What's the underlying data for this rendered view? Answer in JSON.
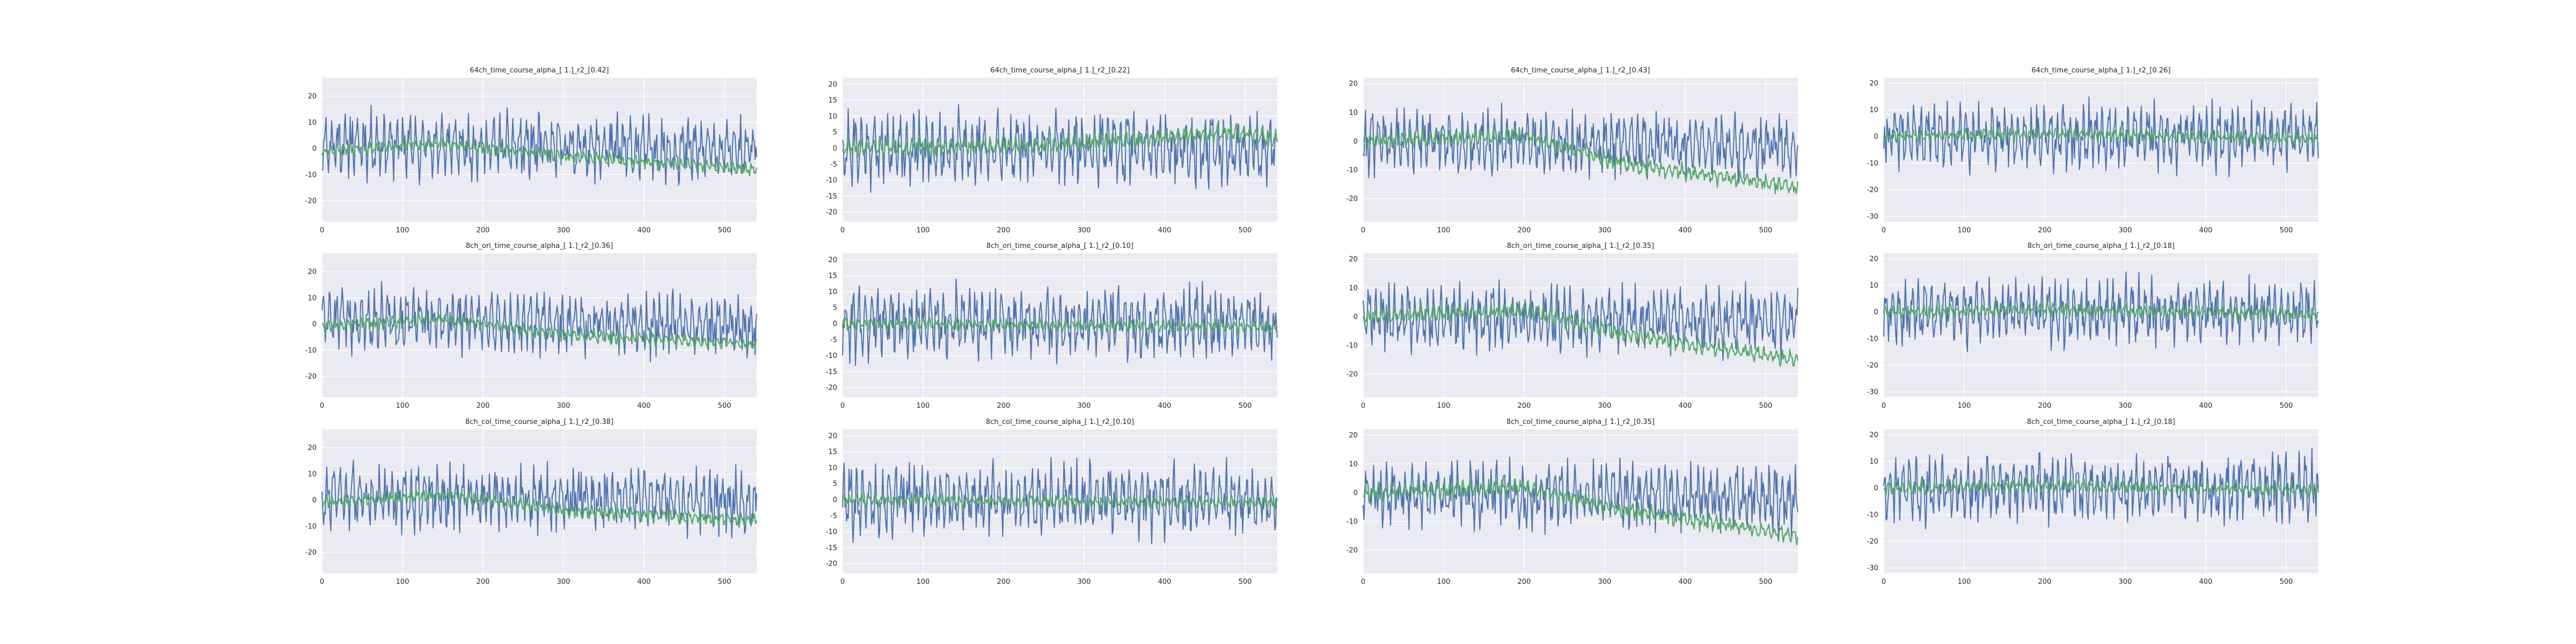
{
  "colors": {
    "background": "#ffffff",
    "axes_face": "#eaeaf2",
    "grid": "#ffffff",
    "series_blue": "#4c72b0",
    "series_green": "#55a868",
    "text": "#262626"
  },
  "figure_layout": {
    "rows": 3,
    "cols": 4,
    "style": "seaborn darkgrid"
  },
  "chart_data": [
    {
      "type": "line",
      "title": "64ch_time_course_alpha_[ 1.]_r2_[0.42]",
      "xlim": [
        0,
        540
      ],
      "ylim": [
        -28,
        27
      ],
      "xticks": [
        0,
        100,
        200,
        300,
        400,
        500
      ],
      "yticks": [
        20,
        10,
        0,
        -10,
        -20
      ],
      "grid": true,
      "series": [
        {
          "color": "#4c72b0",
          "amplitude": 12,
          "trend": [
            [
              0,
              2
            ],
            [
              540,
              -1
            ]
          ],
          "seed": 11
        },
        {
          "color": "#55a868",
          "amplitude": 2.5,
          "trend": [
            [
              0,
              -1
            ],
            [
              150,
              2
            ],
            [
              300,
              -3
            ],
            [
              540,
              -8
            ]
          ],
          "seed": 12
        }
      ]
    },
    {
      "type": "line",
      "title": "64ch_time_course_alpha_[ 1.]_r2_[0.22]",
      "xlim": [
        0,
        540
      ],
      "ylim": [
        -23,
        22
      ],
      "xticks": [
        0,
        100,
        200,
        300,
        400,
        500
      ],
      "yticks": [
        20,
        15,
        10,
        5,
        0,
        -5,
        -10,
        -15,
        -20
      ],
      "grid": true,
      "series": [
        {
          "color": "#4c72b0",
          "amplitude": 11,
          "trend": [
            [
              0,
              0
            ],
            [
              540,
              0
            ]
          ],
          "seed": 21
        },
        {
          "color": "#55a868",
          "amplitude": 3,
          "trend": [
            [
              0,
              0
            ],
            [
              250,
              1
            ],
            [
              500,
              5
            ],
            [
              540,
              2
            ]
          ],
          "seed": 22
        }
      ]
    },
    {
      "type": "line",
      "title": "64ch_time_course_alpha_[ 1.]_r2_[0.43]",
      "xlim": [
        0,
        540
      ],
      "ylim": [
        -28,
        22
      ],
      "xticks": [
        0,
        100,
        200,
        300,
        400,
        500
      ],
      "yticks": [
        20,
        10,
        0,
        -10,
        -20
      ],
      "grid": true,
      "series": [
        {
          "color": "#4c72b0",
          "amplitude": 11,
          "trend": [
            [
              0,
              0
            ],
            [
              540,
              -2
            ]
          ],
          "seed": 31
        },
        {
          "color": "#55a868",
          "amplitude": 3,
          "trend": [
            [
              0,
              0
            ],
            [
              200,
              2
            ],
            [
              320,
              -8
            ],
            [
              540,
              -16
            ]
          ],
          "seed": 32
        }
      ]
    },
    {
      "type": "line",
      "title": "64ch_time_course_alpha_[ 1.]_r2_[0.26]",
      "xlim": [
        0,
        540
      ],
      "ylim": [
        -32,
        22
      ],
      "xticks": [
        0,
        100,
        200,
        300,
        400,
        500
      ],
      "yticks": [
        20,
        10,
        0,
        -10,
        -20,
        -30
      ],
      "grid": true,
      "series": [
        {
          "color": "#4c72b0",
          "amplitude": 12,
          "trend": [
            [
              0,
              0
            ],
            [
              540,
              0
            ]
          ],
          "seed": 41
        },
        {
          "color": "#55a868",
          "amplitude": 2.5,
          "trend": [
            [
              0,
              0
            ],
            [
              200,
              1
            ],
            [
              540,
              -1
            ]
          ],
          "seed": 42
        }
      ]
    },
    {
      "type": "line",
      "title": "8ch_ori_time_course_alpha_[ 1.]_r2_[0.36]",
      "xlim": [
        0,
        540
      ],
      "ylim": [
        -28,
        27
      ],
      "xticks": [
        0,
        100,
        200,
        300,
        400,
        500
      ],
      "yticks": [
        20,
        10,
        0,
        -10,
        -20
      ],
      "grid": true,
      "series": [
        {
          "color": "#4c72b0",
          "amplitude": 12,
          "trend": [
            [
              0,
              2
            ],
            [
              540,
              -1
            ]
          ],
          "seed": 51
        },
        {
          "color": "#55a868",
          "amplitude": 2.5,
          "trend": [
            [
              0,
              -1
            ],
            [
              150,
              2
            ],
            [
              300,
              -4
            ],
            [
              540,
              -8
            ]
          ],
          "seed": 52
        }
      ]
    },
    {
      "type": "line",
      "title": "8ch_ori_time_course_alpha_[ 1.]_r2_[0.10]",
      "xlim": [
        0,
        540
      ],
      "ylim": [
        -23,
        22
      ],
      "xticks": [
        0,
        100,
        200,
        300,
        400,
        500
      ],
      "yticks": [
        20,
        15,
        10,
        5,
        0,
        -5,
        -10,
        -15,
        -20
      ],
      "grid": true,
      "series": [
        {
          "color": "#4c72b0",
          "amplitude": 11,
          "trend": [
            [
              0,
              0
            ],
            [
              540,
              0
            ]
          ],
          "seed": 61
        },
        {
          "color": "#55a868",
          "amplitude": 2,
          "trend": [
            [
              0,
              0
            ],
            [
              540,
              -1
            ]
          ],
          "seed": 62
        }
      ]
    },
    {
      "type": "line",
      "title": "8ch_ori_time_course_alpha_[ 1.]_r2_[0.35]",
      "xlim": [
        0,
        540
      ],
      "ylim": [
        -28,
        22
      ],
      "xticks": [
        0,
        100,
        200,
        300,
        400,
        500
      ],
      "yticks": [
        20,
        10,
        0,
        -10,
        -20
      ],
      "grid": true,
      "series": [
        {
          "color": "#4c72b0",
          "amplitude": 11,
          "trend": [
            [
              0,
              0
            ],
            [
              540,
              -2
            ]
          ],
          "seed": 71
        },
        {
          "color": "#55a868",
          "amplitude": 3,
          "trend": [
            [
              0,
              0
            ],
            [
              200,
              2
            ],
            [
              320,
              -6
            ],
            [
              540,
              -15
            ]
          ],
          "seed": 72
        }
      ]
    },
    {
      "type": "line",
      "title": "8ch_ori_time_course_alpha_[ 1.]_r2_[0.18]",
      "xlim": [
        0,
        540
      ],
      "ylim": [
        -32,
        22
      ],
      "xticks": [
        0,
        100,
        200,
        300,
        400,
        500
      ],
      "yticks": [
        20,
        10,
        0,
        -10,
        -20,
        -30
      ],
      "grid": true,
      "series": [
        {
          "color": "#4c72b0",
          "amplitude": 12,
          "trend": [
            [
              0,
              0
            ],
            [
              540,
              0
            ]
          ],
          "seed": 81
        },
        {
          "color": "#55a868",
          "amplitude": 2.5,
          "trend": [
            [
              0,
              0
            ],
            [
              200,
              1
            ],
            [
              540,
              -1
            ]
          ],
          "seed": 82
        }
      ]
    },
    {
      "type": "line",
      "title": "8ch_col_time_course_alpha_[ 1.]_r2_[0.38]",
      "xlim": [
        0,
        540
      ],
      "ylim": [
        -28,
        27
      ],
      "xticks": [
        0,
        100,
        200,
        300,
        400,
        500
      ],
      "yticks": [
        20,
        10,
        0,
        -10,
        -20
      ],
      "grid": true,
      "series": [
        {
          "color": "#4c72b0",
          "amplitude": 12,
          "trend": [
            [
              0,
              2
            ],
            [
              540,
              -1
            ]
          ],
          "seed": 91
        },
        {
          "color": "#55a868",
          "amplitude": 2.5,
          "trend": [
            [
              0,
              -1
            ],
            [
              150,
              2
            ],
            [
              300,
              -4
            ],
            [
              540,
              -8
            ]
          ],
          "seed": 92
        }
      ]
    },
    {
      "type": "line",
      "title": "8ch_col_time_course_alpha_[ 1.]_r2_[0.10]",
      "xlim": [
        0,
        540
      ],
      "ylim": [
        -23,
        22
      ],
      "xticks": [
        0,
        100,
        200,
        300,
        400,
        500
      ],
      "yticks": [
        20,
        15,
        10,
        5,
        0,
        -5,
        -10,
        -15,
        -20
      ],
      "grid": true,
      "series": [
        {
          "color": "#4c72b0",
          "amplitude": 11,
          "trend": [
            [
              0,
              0
            ],
            [
              540,
              0
            ]
          ],
          "seed": 101
        },
        {
          "color": "#55a868",
          "amplitude": 2,
          "trend": [
            [
              0,
              0
            ],
            [
              540,
              -1
            ]
          ],
          "seed": 102
        }
      ]
    },
    {
      "type": "line",
      "title": "8ch_col_time_course_alpha_[ 1.]_r2_[0.35]",
      "xlim": [
        0,
        540
      ],
      "ylim": [
        -28,
        22
      ],
      "xticks": [
        0,
        100,
        200,
        300,
        400,
        500
      ],
      "yticks": [
        20,
        10,
        0,
        -10,
        -20
      ],
      "grid": true,
      "series": [
        {
          "color": "#4c72b0",
          "amplitude": 11,
          "trend": [
            [
              0,
              0
            ],
            [
              540,
              -2
            ]
          ],
          "seed": 111
        },
        {
          "color": "#55a868",
          "amplitude": 3,
          "trend": [
            [
              0,
              0
            ],
            [
              200,
              2
            ],
            [
              320,
              -6
            ],
            [
              540,
              -15
            ]
          ],
          "seed": 112
        }
      ]
    },
    {
      "type": "line",
      "title": "8ch_col_time_course_alpha_[ 1.]_r2_[0.18]",
      "xlim": [
        0,
        540
      ],
      "ylim": [
        -32,
        22
      ],
      "xticks": [
        0,
        100,
        200,
        300,
        400,
        500
      ],
      "yticks": [
        20,
        10,
        0,
        -10,
        -20,
        -30
      ],
      "grid": true,
      "series": [
        {
          "color": "#4c72b0",
          "amplitude": 12,
          "trend": [
            [
              0,
              0
            ],
            [
              540,
              0
            ]
          ],
          "seed": 121
        },
        {
          "color": "#55a868",
          "amplitude": 2.5,
          "trend": [
            [
              0,
              0
            ],
            [
              200,
              1
            ],
            [
              540,
              -1
            ]
          ],
          "seed": 122
        }
      ]
    }
  ]
}
